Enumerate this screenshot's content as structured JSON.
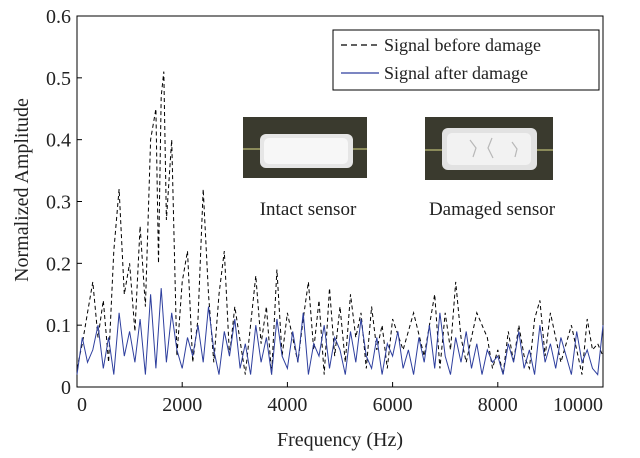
{
  "chart_data": {
    "type": "line",
    "xlabel": "Frequency (Hz)",
    "ylabel": "Normalized Amplitude",
    "xlim": [
      0,
      10000
    ],
    "ylim": [
      0,
      0.6
    ],
    "xticks": [
      "0",
      "2000",
      "4000",
      "6000",
      "8000",
      "10000"
    ],
    "yticks": [
      "0",
      "0.1",
      "0.2",
      "0.3",
      "0.4",
      "0.5",
      "0.6"
    ],
    "grid": false,
    "legend_position": "top-right",
    "series": [
      {
        "name": "Signal before damage",
        "style": "dashed",
        "color": "#000000",
        "x": [
          0,
          100,
          200,
          300,
          400,
          500,
          600,
          700,
          800,
          900,
          1000,
          1100,
          1200,
          1300,
          1400,
          1500,
          1550,
          1600,
          1650,
          1700,
          1800,
          1900,
          2000,
          2100,
          2200,
          2300,
          2400,
          2500,
          2600,
          2700,
          2800,
          2900,
          3000,
          3200,
          3400,
          3500,
          3600,
          3700,
          3800,
          3900,
          4000,
          4200,
          4300,
          4400,
          4500,
          4600,
          4700,
          4800,
          4900,
          5000,
          5100,
          5200,
          5300,
          5400,
          5500,
          5600,
          5700,
          5800,
          5900,
          6000,
          6200,
          6400,
          6600,
          6800,
          6900,
          7000,
          7100,
          7200,
          7300,
          7400,
          7600,
          7800,
          7900,
          8000,
          8100,
          8200,
          8300,
          8400,
          8500,
          8600,
          8700,
          8800,
          8900,
          9000,
          9200,
          9400,
          9600,
          9700,
          9800,
          9900,
          10000
        ],
        "values": [
          0.03,
          0.07,
          0.12,
          0.17,
          0.08,
          0.14,
          0.04,
          0.22,
          0.32,
          0.15,
          0.2,
          0.09,
          0.26,
          0.13,
          0.4,
          0.45,
          0.2,
          0.47,
          0.51,
          0.27,
          0.4,
          0.05,
          0.17,
          0.22,
          0.04,
          0.11,
          0.32,
          0.15,
          0.04,
          0.15,
          0.22,
          0.05,
          0.13,
          0.02,
          0.18,
          0.07,
          0.13,
          0.02,
          0.19,
          0.05,
          0.12,
          0.04,
          0.11,
          0.17,
          0.06,
          0.14,
          0.02,
          0.16,
          0.05,
          0.13,
          0.04,
          0.15,
          0.08,
          0.12,
          0.03,
          0.13,
          0.06,
          0.1,
          0.03,
          0.11,
          0.06,
          0.12,
          0.05,
          0.15,
          0.03,
          0.12,
          0.06,
          0.17,
          0.08,
          0.04,
          0.12,
          0.08,
          0.03,
          0.06,
          0.02,
          0.09,
          0.04,
          0.1,
          0.05,
          0.03,
          0.11,
          0.14,
          0.05,
          0.12,
          0.04,
          0.1,
          0.02,
          0.11,
          0.06,
          0.07,
          0.05
        ]
      },
      {
        "name": "Signal after damage",
        "style": "solid",
        "color": "#2e3f9e",
        "x": [
          0,
          100,
          200,
          300,
          400,
          500,
          600,
          700,
          800,
          900,
          1000,
          1100,
          1200,
          1300,
          1400,
          1500,
          1600,
          1700,
          1800,
          1900,
          2000,
          2100,
          2200,
          2300,
          2400,
          2500,
          2600,
          2700,
          2800,
          2900,
          3000,
          3100,
          3200,
          3300,
          3400,
          3500,
          3600,
          3700,
          3800,
          3900,
          4000,
          4100,
          4200,
          4300,
          4400,
          4500,
          4600,
          4700,
          4800,
          4900,
          5000,
          5100,
          5200,
          5300,
          5400,
          5500,
          5600,
          5700,
          5800,
          5900,
          6000,
          6100,
          6200,
          6300,
          6400,
          6500,
          6600,
          6700,
          6800,
          6900,
          7000,
          7100,
          7200,
          7300,
          7400,
          7500,
          7600,
          7700,
          7800,
          7900,
          8000,
          8100,
          8200,
          8300,
          8400,
          8500,
          8600,
          8700,
          8800,
          8900,
          9000,
          9100,
          9200,
          9300,
          9400,
          9500,
          9600,
          9700,
          9800,
          9900,
          10000
        ],
        "values": [
          0.02,
          0.08,
          0.04,
          0.06,
          0.1,
          0.03,
          0.08,
          0.02,
          0.12,
          0.05,
          0.09,
          0.04,
          0.11,
          0.02,
          0.15,
          0.03,
          0.16,
          0.04,
          0.12,
          0.06,
          0.03,
          0.08,
          0.05,
          0.1,
          0.04,
          0.13,
          0.06,
          0.02,
          0.09,
          0.05,
          0.11,
          0.03,
          0.07,
          0.02,
          0.1,
          0.04,
          0.08,
          0.02,
          0.11,
          0.05,
          0.03,
          0.09,
          0.04,
          0.12,
          0.02,
          0.07,
          0.05,
          0.1,
          0.03,
          0.08,
          0.06,
          0.02,
          0.09,
          0.04,
          0.11,
          0.05,
          0.03,
          0.08,
          0.02,
          0.07,
          0.05,
          0.09,
          0.03,
          0.06,
          0.02,
          0.08,
          0.04,
          0.1,
          0.03,
          0.12,
          0.05,
          0.02,
          0.08,
          0.04,
          0.09,
          0.03,
          0.07,
          0.02,
          0.06,
          0.04,
          0.05,
          0.02,
          0.07,
          0.04,
          0.09,
          0.03,
          0.06,
          0.02,
          0.1,
          0.04,
          0.07,
          0.03,
          0.08,
          0.05,
          0.02,
          0.09,
          0.04,
          0.06,
          0.03,
          0.02,
          0.1
        ]
      }
    ],
    "annotations": {
      "intact_caption": "Intact sensor",
      "damaged_caption": "Damaged sensor"
    }
  }
}
